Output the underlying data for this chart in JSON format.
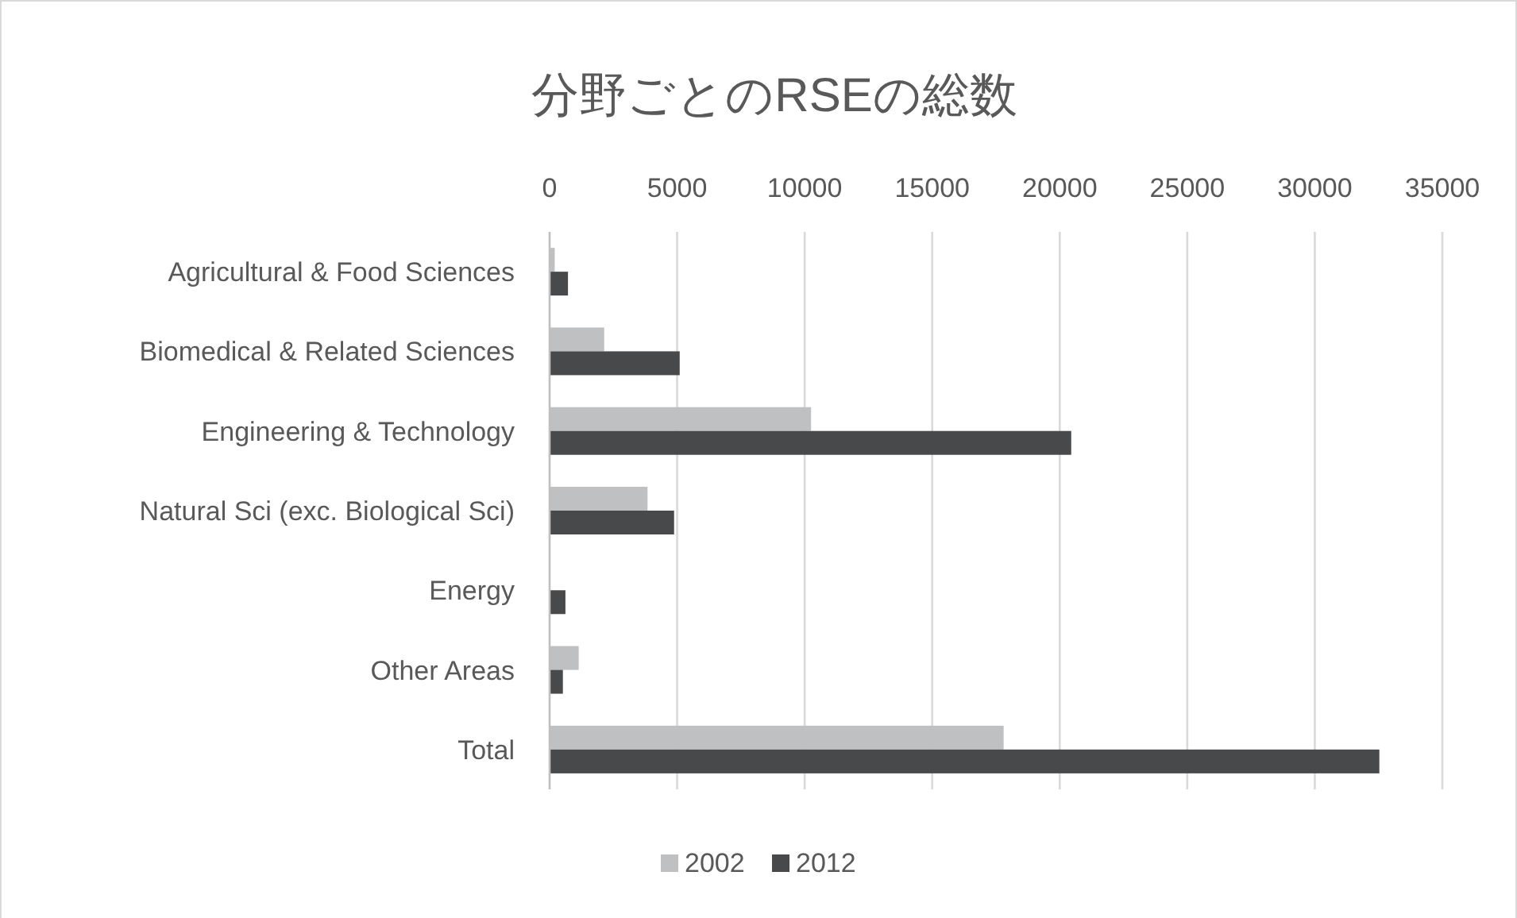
{
  "chart_data": {
    "type": "bar",
    "orientation": "horizontal",
    "title": "分野ごとのRSEの総数",
    "categories": [
      "Agricultural & Food Sciences",
      "Biomedical & Related Sciences",
      "Engineering & Technology",
      "Natural Sci (exc. Biological Sci)",
      "Energy",
      "Other Areas",
      "Total"
    ],
    "series": [
      {
        "name": "2002",
        "color": "#bfc0c2",
        "values": [
          200,
          2140,
          10250,
          3840,
          0,
          1140,
          17800
        ]
      },
      {
        "name": "2012",
        "color": "#48494b",
        "values": [
          720,
          5100,
          20450,
          4880,
          620,
          520,
          32530
        ]
      }
    ],
    "xlim": [
      0,
      35000
    ],
    "xticks": [
      0,
      5000,
      10000,
      15000,
      20000,
      25000,
      30000,
      35000
    ],
    "grid": "x",
    "legend": "bottom"
  }
}
